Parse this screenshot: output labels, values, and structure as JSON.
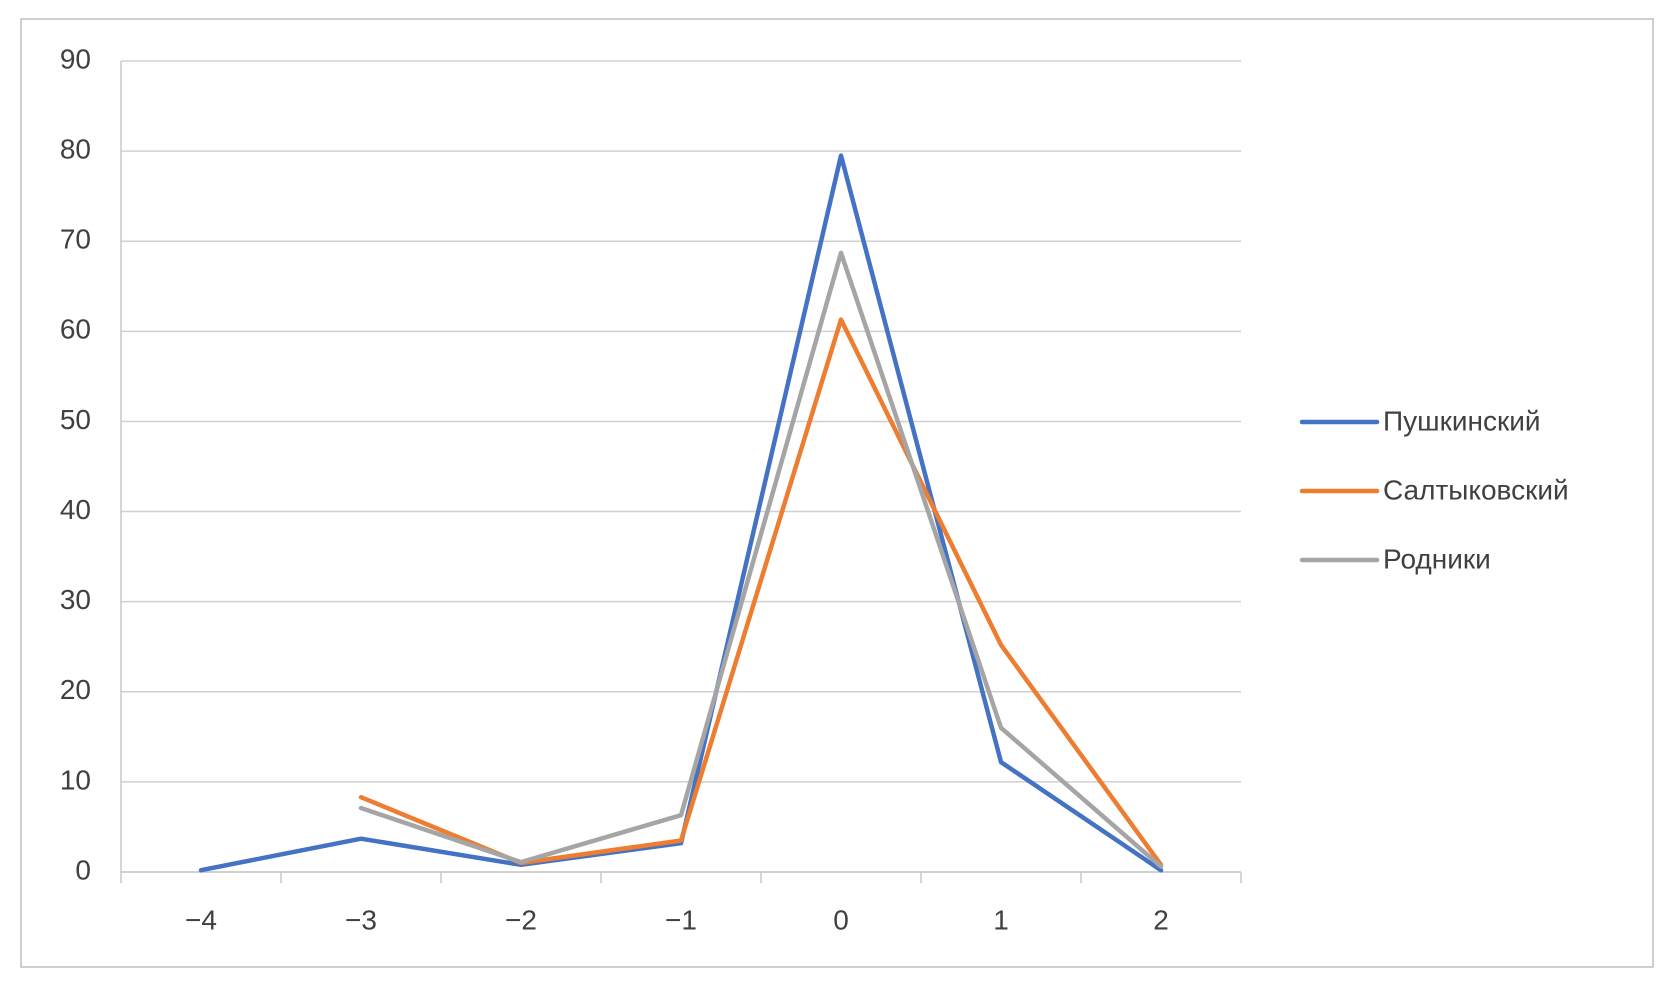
{
  "chart_data": {
    "type": "line",
    "categories": [
      "−4",
      "−3",
      "−2",
      "−1",
      "0",
      "1",
      "2"
    ],
    "series": [
      {
        "name": "Пушкинский",
        "color": "#4472c4",
        "values": [
          0.2,
          3.7,
          0.8,
          3.2,
          79.5,
          12.2,
          0.2
        ]
      },
      {
        "name": "Салтыковский",
        "color": "#ed7d31",
        "values": [
          null,
          8.3,
          1.0,
          3.5,
          61.3,
          25.2,
          0.8
        ]
      },
      {
        "name": "Родники",
        "color": "#a5a5a5",
        "values": [
          null,
          7.1,
          1.1,
          6.3,
          68.7,
          16.0,
          0.6
        ]
      }
    ],
    "ylim": [
      0,
      90
    ],
    "yticks": [
      0,
      10,
      20,
      30,
      40,
      50,
      60,
      70,
      80,
      90
    ],
    "grid": true,
    "legend": "right"
  }
}
